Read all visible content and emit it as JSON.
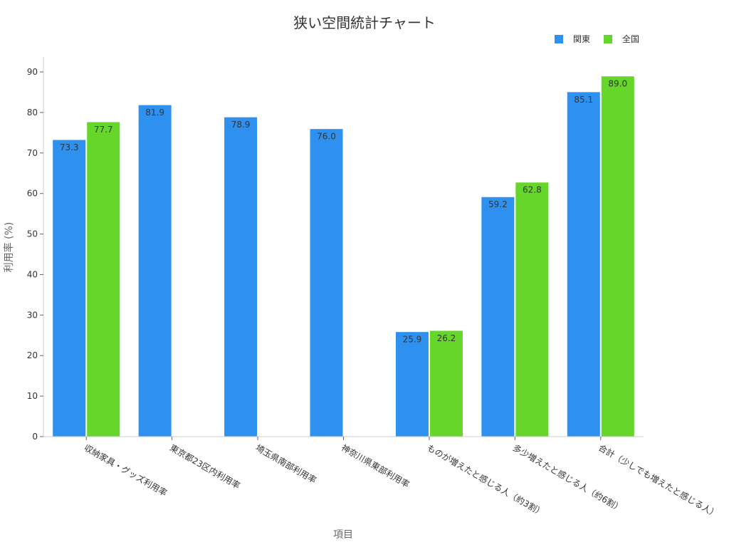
{
  "chart_data": {
    "type": "bar",
    "title": "狭い空間統計チャート",
    "xlabel": "項目",
    "ylabel": "利用率 (%)",
    "ylim": [
      0,
      95
    ],
    "yticks": [
      0,
      10,
      20,
      30,
      40,
      50,
      60,
      70,
      80,
      90
    ],
    "grid": false,
    "legend_position": "top-right",
    "categories": [
      "収納家具・グッズ利用率",
      "東京都23区内利用率",
      "埼玉県南部利用率",
      "神奈川県東部利用率",
      "ものが増えたと感じる人（約3割）",
      "多少増えたと感じる人（約6割）",
      "合計（少しでも増えたと感じる人）"
    ],
    "series": [
      {
        "name": "関東",
        "color": "#2e91f0",
        "values": [
          73.3,
          81.9,
          78.9,
          76.0,
          25.9,
          59.2,
          85.1
        ]
      },
      {
        "name": "全国",
        "color": "#66d62b",
        "values": [
          77.7,
          null,
          null,
          null,
          26.2,
          62.8,
          89.0
        ]
      }
    ]
  }
}
